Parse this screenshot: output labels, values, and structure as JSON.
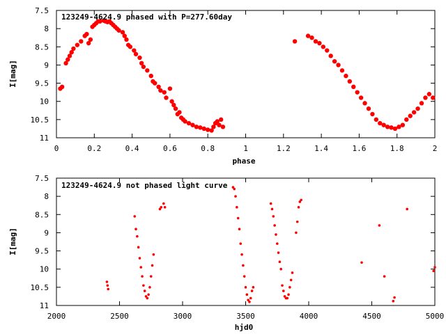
{
  "chart_data": [
    {
      "type": "scatter",
      "title": "123249-4624.9 phased with P=277.60day",
      "xlabel": "phase",
      "ylabel": "I[mag]",
      "xlim": [
        0,
        2
      ],
      "ylim": [
        7.5,
        11
      ],
      "y_inverted": true,
      "grid": false,
      "marker_color": "#ff0000",
      "x_ticks": [
        "0",
        "0.2",
        "0.4",
        "0.6",
        "0.8",
        "1",
        "1.2",
        "1.4",
        "1.6",
        "1.8",
        "2"
      ],
      "y_ticks": [
        "7.5",
        "8",
        "8.5",
        "9",
        "9.5",
        "10",
        "10.5",
        "11"
      ],
      "series": [
        {
          "x": [
            0.02,
            0.03,
            0.05,
            0.06,
            0.07,
            0.08,
            0.09,
            0.11,
            0.13,
            0.15,
            0.16,
            0.17,
            0.18,
            0.19,
            0.2,
            0.21,
            0.22,
            0.23,
            0.25,
            0.26,
            0.27,
            0.28,
            0.29,
            0.3,
            0.31,
            0.32,
            0.33,
            0.35,
            0.36,
            0.37,
            0.38,
            0.39,
            0.41,
            0.42,
            0.44,
            0.45,
            0.46,
            0.48,
            0.5,
            0.51,
            0.52,
            0.54,
            0.55,
            0.57,
            0.58,
            0.6,
            0.61,
            0.62,
            0.63,
            0.64,
            0.65,
            0.66,
            0.67,
            0.68,
            0.7,
            0.72,
            0.74,
            0.76,
            0.78,
            0.8,
            0.82,
            0.83,
            0.84,
            0.85,
            0.86,
            0.87,
            0.88,
            1.26,
            1.33,
            1.35,
            1.37,
            1.39,
            1.41,
            1.43,
            1.45,
            1.47,
            1.49,
            1.51,
            1.53,
            1.55,
            1.57,
            1.59,
            1.61,
            1.63,
            1.65,
            1.67,
            1.69,
            1.71,
            1.73,
            1.75,
            1.77,
            1.79,
            1.81,
            1.83,
            1.85,
            1.87,
            1.89,
            1.91,
            1.93,
            1.95,
            1.97,
            1.99
          ],
          "y": [
            9.65,
            9.6,
            8.95,
            8.85,
            8.75,
            8.65,
            8.55,
            8.45,
            8.35,
            8.2,
            8.15,
            8.4,
            8.3,
            7.95,
            7.9,
            7.85,
            7.8,
            7.8,
            7.78,
            7.8,
            7.82,
            7.8,
            7.85,
            7.9,
            7.95,
            8.0,
            8.05,
            8.1,
            8.2,
            8.3,
            8.45,
            8.5,
            8.6,
            8.7,
            8.8,
            8.95,
            9.05,
            9.15,
            9.3,
            9.45,
            9.5,
            9.6,
            9.7,
            9.75,
            9.9,
            9.65,
            10.0,
            10.1,
            10.2,
            10.35,
            10.3,
            10.45,
            10.5,
            10.55,
            10.6,
            10.65,
            10.7,
            10.72,
            10.75,
            10.78,
            10.8,
            10.7,
            10.6,
            10.55,
            10.65,
            10.5,
            10.7,
            8.35,
            8.2,
            8.25,
            8.35,
            8.4,
            8.5,
            8.6,
            8.75,
            8.9,
            9.0,
            9.15,
            9.3,
            9.45,
            9.6,
            9.75,
            9.9,
            10.05,
            10.2,
            10.35,
            10.5,
            10.6,
            10.65,
            10.7,
            10.72,
            10.75,
            10.7,
            10.65,
            10.5,
            10.4,
            10.3,
            10.2,
            10.05,
            9.9,
            9.8,
            9.9
          ]
        }
      ]
    },
    {
      "type": "scatter",
      "title": "123249-4624.9 not phased light curve",
      "xlabel": "hjd0",
      "ylabel": "I[mag]",
      "xlim": [
        2000,
        5000
      ],
      "ylim": [
        7.5,
        11
      ],
      "y_inverted": true,
      "grid": false,
      "marker_color": "#ff0000",
      "x_ticks": [
        "2000",
        "2500",
        "3000",
        "3500",
        "4000",
        "4500",
        "5000"
      ],
      "y_ticks": [
        "7.5",
        "8",
        "8.5",
        "9",
        "9.5",
        "10",
        "10.5",
        "11"
      ],
      "series": [
        {
          "x": [
            2400,
            2405,
            2410,
            2620,
            2630,
            2640,
            2650,
            2660,
            2670,
            2680,
            2690,
            2700,
            2710,
            2720,
            2730,
            2740,
            2750,
            2760,
            2770,
            2820,
            2830,
            2850,
            2860,
            3400,
            3410,
            3420,
            3430,
            3440,
            3450,
            3460,
            3470,
            3480,
            3490,
            3500,
            3510,
            3520,
            3530,
            3540,
            3550,
            3560,
            3700,
            3710,
            3720,
            3730,
            3740,
            3750,
            3760,
            3770,
            3780,
            3790,
            3800,
            3810,
            3820,
            3830,
            3840,
            3850,
            3860,
            3870,
            3900,
            3910,
            3920,
            3930,
            3940,
            4420,
            4560,
            4600,
            4670,
            4680,
            4780,
            4990,
            5000
          ],
          "y": [
            10.35,
            10.45,
            10.55,
            8.55,
            8.9,
            9.1,
            9.4,
            9.7,
            9.95,
            10.2,
            10.45,
            10.6,
            10.75,
            10.8,
            10.7,
            10.5,
            10.2,
            9.9,
            9.6,
            8.35,
            8.3,
            8.2,
            8.3,
            7.75,
            7.8,
            8.0,
            8.3,
            8.6,
            8.9,
            9.3,
            9.6,
            9.9,
            10.2,
            10.5,
            10.7,
            10.85,
            10.9,
            10.8,
            10.6,
            10.5,
            8.2,
            8.35,
            8.55,
            8.8,
            9.05,
            9.3,
            9.55,
            9.8,
            10.0,
            10.45,
            10.6,
            10.75,
            10.8,
            10.8,
            10.7,
            10.5,
            10.3,
            10.1,
            9.0,
            8.7,
            8.3,
            8.15,
            8.1,
            9.82,
            8.8,
            10.2,
            10.88,
            10.78,
            8.35,
            10.05,
            9.95
          ]
        }
      ]
    }
  ]
}
